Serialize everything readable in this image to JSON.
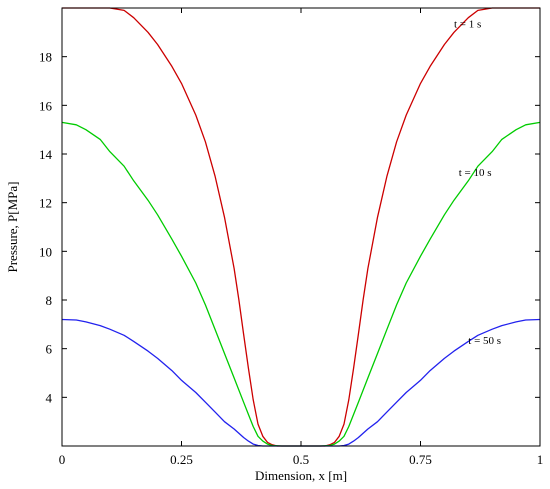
{
  "chart_data": {
    "type": "line",
    "xlabel": "Dimension, x [m]",
    "ylabel": "Pressure, P[MPa]",
    "xlim": [
      0,
      1
    ],
    "ylim": [
      2,
      20
    ],
    "xticks": [
      0,
      0.25,
      0.5,
      0.75,
      1
    ],
    "xtick_labels": [
      "0",
      "0.25",
      "0.5",
      "0.75",
      "1"
    ],
    "yticks": [
      4,
      6,
      8,
      10,
      12,
      14,
      16,
      18
    ],
    "ytick_labels": [
      "4",
      "6",
      "8",
      "10",
      "12",
      "14",
      "16",
      "18"
    ],
    "grid": false,
    "legend": "none",
    "series": [
      {
        "name": "t = 1 s",
        "color": "#cc0000",
        "x": [
          0,
          0.03,
          0.05,
          0.08,
          0.1,
          0.13,
          0.15,
          0.18,
          0.2,
          0.23,
          0.25,
          0.28,
          0.3,
          0.32,
          0.34,
          0.36,
          0.37,
          0.38,
          0.39,
          0.4,
          0.41,
          0.42,
          0.43,
          0.44,
          0.45,
          0.47,
          0.5,
          0.53,
          0.55,
          0.56,
          0.57,
          0.58,
          0.59,
          0.6,
          0.61,
          0.62,
          0.63,
          0.64,
          0.66,
          0.68,
          0.7,
          0.72,
          0.75,
          0.77,
          0.8,
          0.82,
          0.85,
          0.87,
          0.9,
          0.92,
          0.95,
          0.97,
          1
        ],
        "y": [
          20,
          20,
          20,
          20,
          20,
          19.9,
          19.6,
          19.0,
          18.5,
          17.6,
          16.9,
          15.6,
          14.5,
          13.1,
          11.4,
          9.3,
          8.0,
          6.6,
          5.2,
          3.9,
          2.9,
          2.4,
          2.15,
          2.05,
          2.0,
          2.0,
          2.0,
          2.0,
          2.0,
          2.05,
          2.15,
          2.4,
          2.9,
          3.9,
          5.2,
          6.6,
          8.0,
          9.3,
          11.4,
          13.1,
          14.5,
          15.6,
          16.9,
          17.6,
          18.5,
          19.0,
          19.6,
          19.9,
          20,
          20,
          20,
          20,
          20
        ]
      },
      {
        "name": "t = 10 s",
        "color": "#00cc00",
        "x": [
          0,
          0.03,
          0.05,
          0.08,
          0.1,
          0.13,
          0.15,
          0.18,
          0.2,
          0.23,
          0.25,
          0.28,
          0.3,
          0.32,
          0.34,
          0.36,
          0.38,
          0.39,
          0.4,
          0.41,
          0.42,
          0.43,
          0.44,
          0.46,
          0.5,
          0.54,
          0.56,
          0.57,
          0.58,
          0.59,
          0.6,
          0.61,
          0.62,
          0.64,
          0.66,
          0.68,
          0.7,
          0.72,
          0.75,
          0.77,
          0.8,
          0.82,
          0.85,
          0.87,
          0.9,
          0.92,
          0.95,
          0.97,
          1
        ],
        "y": [
          15.3,
          15.2,
          15.0,
          14.6,
          14.1,
          13.5,
          12.9,
          12.1,
          11.5,
          10.5,
          9.8,
          8.7,
          7.8,
          6.8,
          5.8,
          4.8,
          3.8,
          3.3,
          2.8,
          2.4,
          2.2,
          2.08,
          2.02,
          2.0,
          2.0,
          2.0,
          2.02,
          2.08,
          2.2,
          2.4,
          2.8,
          3.3,
          3.8,
          4.8,
          5.8,
          6.8,
          7.8,
          8.7,
          9.8,
          10.5,
          11.5,
          12.1,
          12.9,
          13.5,
          14.1,
          14.6,
          15.0,
          15.2,
          15.3
        ]
      },
      {
        "name": "t = 50 s",
        "color": "#2222ee",
        "x": [
          0,
          0.03,
          0.05,
          0.08,
          0.1,
          0.13,
          0.15,
          0.18,
          0.2,
          0.23,
          0.25,
          0.28,
          0.3,
          0.32,
          0.34,
          0.36,
          0.38,
          0.39,
          0.4,
          0.41,
          0.42,
          0.44,
          0.5,
          0.56,
          0.58,
          0.59,
          0.6,
          0.61,
          0.62,
          0.64,
          0.66,
          0.68,
          0.7,
          0.72,
          0.75,
          0.77,
          0.8,
          0.82,
          0.85,
          0.87,
          0.9,
          0.92,
          0.95,
          0.97,
          1
        ],
        "y": [
          7.2,
          7.18,
          7.1,
          6.95,
          6.8,
          6.55,
          6.3,
          5.9,
          5.6,
          5.1,
          4.7,
          4.2,
          3.8,
          3.4,
          3.0,
          2.7,
          2.35,
          2.2,
          2.08,
          2.02,
          2.0,
          2.0,
          2.0,
          2.0,
          2.0,
          2.02,
          2.08,
          2.2,
          2.35,
          2.7,
          3.0,
          3.4,
          3.8,
          4.2,
          4.7,
          5.1,
          5.6,
          5.9,
          6.3,
          6.55,
          6.8,
          6.95,
          7.1,
          7.18,
          7.2
        ]
      }
    ],
    "annotations": [
      {
        "text": "t = 1 s",
        "x": 0.82,
        "y": 19.2
      },
      {
        "text": "t = 10 s",
        "x": 0.83,
        "y": 13.1
      },
      {
        "text": "t = 50 s",
        "x": 0.85,
        "y": 6.2
      }
    ]
  }
}
